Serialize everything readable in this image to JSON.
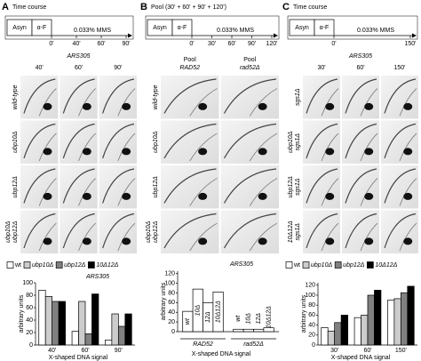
{
  "panels": [
    {
      "label": "A",
      "timeline": {
        "title": "Time course",
        "boxes": [
          "Asyn",
          "α-F"
        ],
        "treatment": "0.033% MMS",
        "times": [
          "0'",
          "40'",
          "60'",
          "90'"
        ]
      },
      "gel": {
        "header": "ARS305",
        "columns": [
          [
            "40'"
          ],
          [
            "60'"
          ],
          [
            "90'"
          ]
        ],
        "rows": [
          [
            "wild-type"
          ],
          [
            "ubp10Δ"
          ],
          [
            "ubp12Δ"
          ],
          [
            "ubp10Δ",
            "ubp12Δ"
          ]
        ]
      }
    },
    {
      "label": "B",
      "timeline": {
        "title": "Pool (30' + 60' + 90' + 120')",
        "boxes": [
          "Asyn",
          "α-F"
        ],
        "treatment": "0.033% MMS",
        "times": [
          "0'",
          "30'",
          "60'",
          "90'",
          "120'"
        ]
      },
      "gel": {
        "header": null,
        "columns": [
          [
            "Pool",
            "RAD52"
          ],
          [
            "Pool",
            "rad52Δ"
          ]
        ],
        "rows": [
          [
            "wild-type"
          ],
          [
            "ubp10Δ"
          ],
          [
            "ubp12Δ"
          ],
          [
            "ubp10Δ",
            "ubp12Δ"
          ]
        ]
      }
    },
    {
      "label": "C",
      "timeline": {
        "title": "Time course",
        "boxes": [
          "Asyn",
          "α-F"
        ],
        "treatment": "0.033% MMS",
        "times": [
          "0'",
          "150'"
        ]
      },
      "gel": {
        "header": "ARS305",
        "columns": [
          [
            "30'"
          ],
          [
            "60'"
          ],
          [
            "150'"
          ]
        ],
        "rows": [
          [
            "sgs1Δ"
          ],
          [
            "ubp10Δ",
            "sgs1Δ"
          ],
          [
            "ubp12Δ",
            "sgs1Δ"
          ],
          [
            "10Δ12Δ",
            "sgs1Δ"
          ]
        ]
      }
    }
  ],
  "chart_data": [
    {
      "type": "bar",
      "title": "ARS305",
      "ylabel": "arbitrary units",
      "xlabel": "X-shaped DNA signal",
      "categories": [
        "40'",
        "60'",
        "90'"
      ],
      "series": [
        {
          "name": "wt",
          "color": "#ffffff",
          "values": [
            88,
            22,
            8
          ]
        },
        {
          "name": "ubp10Δ",
          "color": "#cccccc",
          "values": [
            78,
            70,
            50
          ]
        },
        {
          "name": "ubp12Δ",
          "color": "#808080",
          "values": [
            70,
            18,
            30
          ]
        },
        {
          "name": "10Δ12Δ",
          "color": "#000000",
          "values": [
            70,
            82,
            50
          ]
        }
      ],
      "ylim": [
        0,
        100
      ],
      "yticks": [
        0,
        20,
        40,
        60,
        80,
        100
      ],
      "legend": "top",
      "bar_labels": false
    },
    {
      "type": "bar",
      "title": "ARS305",
      "ylabel": "arbitrary units",
      "xlabel": "X-shaped DNA signal",
      "categories": [
        "RAD52",
        "rad52Δ"
      ],
      "series": [
        {
          "name": "wt",
          "color": "#ffffff",
          "values": [
            42,
            5
          ]
        },
        {
          "name": "10Δ",
          "color": "#ffffff",
          "values": [
            88,
            5
          ]
        },
        {
          "name": "12Δ",
          "color": "#ffffff",
          "values": [
            60,
            5
          ]
        },
        {
          "name": "10Δ12Δ",
          "color": "#ffffff",
          "values": [
            82,
            8
          ]
        }
      ],
      "ylim": [
        0,
        125
      ],
      "yticks": [
        0,
        20,
        40,
        60,
        80,
        100,
        120
      ],
      "legend": null,
      "bar_labels": true
    },
    {
      "type": "bar",
      "title": null,
      "ylabel": "arbitrary units",
      "xlabel": "X-shaped DNA signal",
      "categories": [
        "30'",
        "60'",
        "150'"
      ],
      "series": [
        {
          "name": "wt",
          "color": "#ffffff",
          "values": [
            35,
            55,
            90
          ]
        },
        {
          "name": "ubp10Δ",
          "color": "#cccccc",
          "values": [
            28,
            60,
            93
          ]
        },
        {
          "name": "ubp12Δ",
          "color": "#808080",
          "values": [
            45,
            100,
            105
          ]
        },
        {
          "name": "10Δ12Δ",
          "color": "#000000",
          "values": [
            60,
            110,
            118
          ]
        }
      ],
      "ylim": [
        0,
        125
      ],
      "yticks": [
        0,
        20,
        40,
        60,
        80,
        100,
        120
      ],
      "legend": "top",
      "bar_labels": false
    }
  ]
}
